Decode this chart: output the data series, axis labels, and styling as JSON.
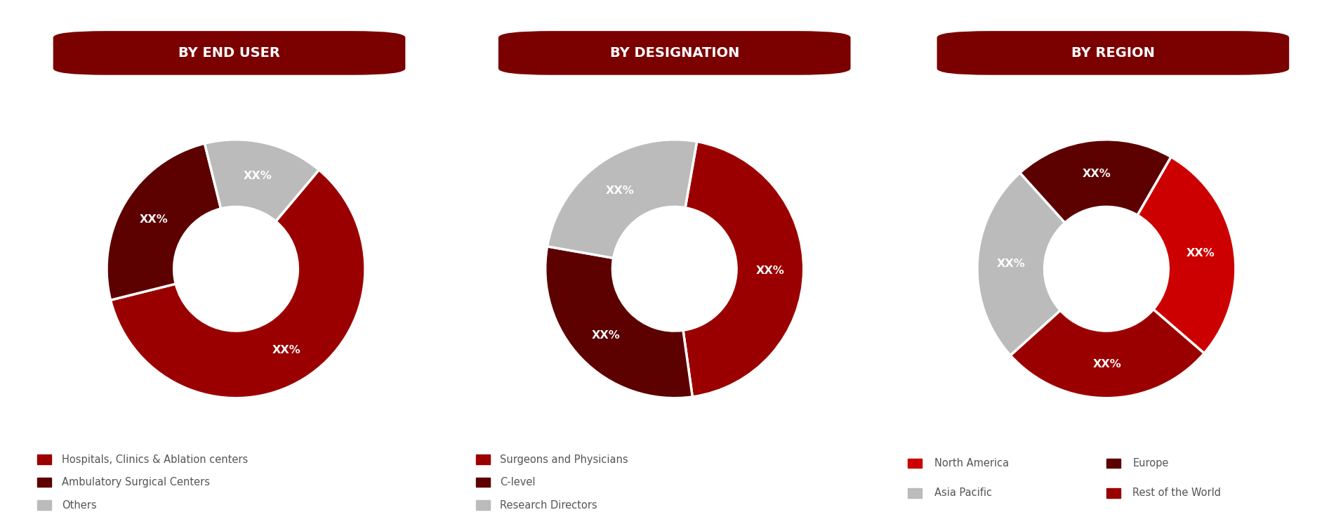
{
  "chart1": {
    "title": "BY END USER",
    "slices": [
      0.6,
      0.25,
      0.15
    ],
    "colors": [
      "#9B0000",
      "#5C0000",
      "#BBBBBB"
    ],
    "labels": [
      "XX%",
      "XX%",
      "XX%"
    ],
    "legend": [
      "Hospitals, Clinics & Ablation centers",
      "Ambulatory Surgical Centers",
      "Others"
    ],
    "legend_colors": [
      "#9B0000",
      "#5C0000",
      "#BBBBBB"
    ],
    "start_angle": 50
  },
  "chart2": {
    "title": "BY DESIGNATION",
    "slices": [
      0.45,
      0.3,
      0.25
    ],
    "colors": [
      "#9B0000",
      "#5C0000",
      "#BBBBBB"
    ],
    "labels": [
      "XX%",
      "XX%",
      "XX%"
    ],
    "legend": [
      "Surgeons and Physicians",
      "C-level",
      "Research Directors"
    ],
    "legend_colors": [
      "#9B0000",
      "#5C0000",
      "#BBBBBB"
    ],
    "start_angle": 80
  },
  "chart3": {
    "title": "BY REGION",
    "slices": [
      0.28,
      0.27,
      0.25,
      0.2
    ],
    "colors": [
      "#CC0000",
      "#9B0000",
      "#BBBBBB",
      "#5C0000"
    ],
    "labels": [
      "XX%",
      "XX%",
      "XX%",
      "XX%"
    ],
    "legend": [
      "North America",
      "Europe",
      "Asia Pacific",
      "Rest of the World"
    ],
    "legend_colors": [
      "#CC0000",
      "#5C0000",
      "#BBBBBB",
      "#9B0000"
    ],
    "start_angle": 60
  },
  "header_color": "#7B0000",
  "header_text_color": "#FFFFFF",
  "background_color": "#FFFFFF",
  "title_fontsize": 14,
  "legend_fontsize": 10.5,
  "label_fontsize": 11.5,
  "donut_width": 0.52
}
